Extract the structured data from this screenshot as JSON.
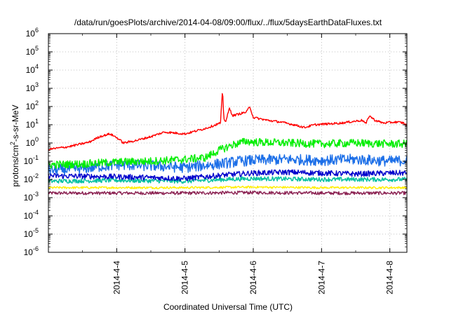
{
  "chart_data": {
    "type": "line",
    "title": "/data/run/goesPlots/archive/2014-04-08/09:00/flux/../flux/5daysEarthDataFluxes.txt",
    "xlabel": "Coordinated Universal Time (UTC)",
    "ylabel": {
      "base": "protons/cm",
      "sup": "2",
      "rest": "-s-sr-MeV"
    },
    "y_scale": "log",
    "ylim": [
      1e-06,
      1000000.0
    ],
    "xlim": [
      0.0,
      5.25
    ],
    "grid": true,
    "y_ticks": [
      {
        "exp": "-6"
      },
      {
        "exp": "-5"
      },
      {
        "exp": "-4"
      },
      {
        "exp": "-3"
      },
      {
        "exp": "-2"
      },
      {
        "exp": "-1"
      },
      {
        "exp": "0"
      },
      {
        "exp": "1"
      },
      {
        "exp": "2"
      },
      {
        "exp": "3"
      },
      {
        "exp": "4"
      },
      {
        "exp": "5"
      },
      {
        "exp": "6"
      }
    ],
    "y_tick_base": "10",
    "x_ticks": [
      {
        "value": 1.0,
        "label": "2014-4-4"
      },
      {
        "value": 2.0,
        "label": "2014-4-5"
      },
      {
        "value": 3.0,
        "label": "2014-4-6"
      },
      {
        "value": 4.0,
        "label": "2014-4-7"
      },
      {
        "value": 5.0,
        "label": "2014-4-8"
      }
    ],
    "series": [
      {
        "color": "#ff0000",
        "noise": 0.06,
        "points": [
          [
            0,
            -0.35
          ],
          [
            0.3,
            -0.2
          ],
          [
            0.6,
            0.05
          ],
          [
            0.75,
            0.35
          ],
          [
            0.9,
            0.5
          ],
          [
            1.0,
            0.3
          ],
          [
            1.1,
            0.0
          ],
          [
            1.3,
            0.15
          ],
          [
            1.5,
            0.35
          ],
          [
            1.7,
            0.6
          ],
          [
            2.0,
            0.5
          ],
          [
            2.2,
            0.7
          ],
          [
            2.3,
            0.8
          ],
          [
            2.45,
            1.0
          ],
          [
            2.52,
            1.1
          ],
          [
            2.55,
            2.9
          ],
          [
            2.57,
            1.3
          ],
          [
            2.6,
            1.2
          ],
          [
            2.65,
            1.9
          ],
          [
            2.7,
            1.5
          ],
          [
            2.8,
            1.6
          ],
          [
            2.9,
            1.7
          ],
          [
            2.95,
            2.0
          ],
          [
            3.0,
            1.4
          ],
          [
            3.2,
            1.25
          ],
          [
            3.4,
            1.15
          ],
          [
            3.6,
            1.0
          ],
          [
            3.75,
            0.85
          ],
          [
            3.9,
            1.0
          ],
          [
            4.1,
            1.05
          ],
          [
            4.3,
            1.1
          ],
          [
            4.5,
            1.2
          ],
          [
            4.6,
            1.25
          ],
          [
            4.65,
            1.05
          ],
          [
            4.7,
            1.5
          ],
          [
            4.78,
            1.25
          ],
          [
            4.9,
            1.1
          ],
          [
            5.1,
            1.15
          ],
          [
            5.2,
            1.1
          ],
          [
            5.25,
            0.95
          ]
        ]
      },
      {
        "color": "#00ee00",
        "noise": 0.22,
        "points": [
          [
            0,
            -1.2
          ],
          [
            0.5,
            -1.15
          ],
          [
            1.0,
            -1.05
          ],
          [
            1.5,
            -1.0
          ],
          [
            2.0,
            -0.9
          ],
          [
            2.3,
            -0.8
          ],
          [
            2.5,
            -0.4
          ],
          [
            2.7,
            -0.1
          ],
          [
            2.9,
            0.1
          ],
          [
            3.0,
            0.05
          ],
          [
            3.5,
            0.0
          ],
          [
            4.0,
            -0.05
          ],
          [
            4.5,
            0.0
          ],
          [
            5.0,
            -0.05
          ],
          [
            5.25,
            -0.05
          ]
        ]
      },
      {
        "color": "#1c6fe8",
        "noise": 0.3,
        "points": [
          [
            0,
            -1.5
          ],
          [
            0.5,
            -1.4
          ],
          [
            1.0,
            -1.2
          ],
          [
            1.5,
            -1.25
          ],
          [
            2.0,
            -1.35
          ],
          [
            2.5,
            -1.15
          ],
          [
            2.8,
            -1.0
          ],
          [
            3.0,
            -0.95
          ],
          [
            3.5,
            -0.9
          ],
          [
            4.0,
            -0.95
          ],
          [
            4.5,
            -0.9
          ],
          [
            5.0,
            -1.0
          ],
          [
            5.25,
            -0.95
          ]
        ]
      },
      {
        "color": "#0000cc",
        "noise": 0.15,
        "points": [
          [
            0,
            -1.8
          ],
          [
            1.0,
            -1.85
          ],
          [
            2.0,
            -1.95
          ],
          [
            2.6,
            -1.75
          ],
          [
            3.0,
            -1.65
          ],
          [
            3.5,
            -1.6
          ],
          [
            4.0,
            -1.65
          ],
          [
            4.5,
            -1.7
          ],
          [
            5.0,
            -1.65
          ],
          [
            5.25,
            -1.65
          ]
        ]
      },
      {
        "color": "#00c0a0",
        "noise": 0.12,
        "points": [
          [
            0,
            -2.1
          ],
          [
            1.0,
            -2.05
          ],
          [
            2.0,
            -2.1
          ],
          [
            2.6,
            -2.0
          ],
          [
            3.0,
            -1.95
          ],
          [
            4.0,
            -2.0
          ],
          [
            5.0,
            -2.0
          ],
          [
            5.25,
            -2.0
          ]
        ]
      },
      {
        "color": "#ffee00",
        "noise": 0.06,
        "points": [
          [
            0,
            -2.45
          ],
          [
            2.0,
            -2.45
          ],
          [
            3.0,
            -2.42
          ],
          [
            4.0,
            -2.45
          ],
          [
            5.25,
            -2.45
          ]
        ]
      },
      {
        "color": "#8b2252",
        "noise": 0.09,
        "points": [
          [
            0,
            -2.75
          ],
          [
            2.0,
            -2.75
          ],
          [
            3.0,
            -2.72
          ],
          [
            4.0,
            -2.75
          ],
          [
            5.25,
            -2.75
          ]
        ]
      }
    ]
  }
}
